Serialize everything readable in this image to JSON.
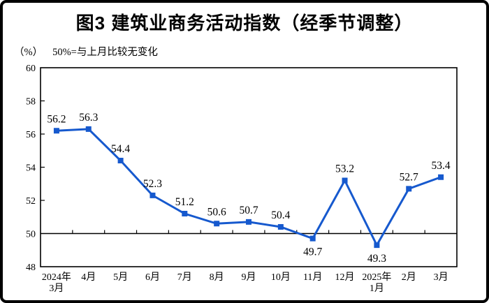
{
  "header": {
    "figure_label": "图3",
    "subtitle_unit": "（%）",
    "subtitle_note": "50%=与上月比较无变化"
  },
  "chart_data": {
    "type": "line",
    "title": "图3 建筑业商务活动指数（经季节调整）",
    "unit_label": "（%）",
    "note": "50%=与上月比较无变化",
    "categories": [
      "2024年\n3月",
      "4月",
      "5月",
      "6月",
      "7月",
      "8月",
      "9月",
      "10月",
      "11月",
      "12月",
      "2025年\n1月",
      "2月",
      "3月"
    ],
    "values": [
      56.2,
      56.3,
      54.4,
      52.3,
      51.2,
      50.6,
      50.7,
      50.4,
      49.7,
      53.2,
      49.3,
      52.7,
      53.4
    ],
    "yticks": [
      60,
      58,
      56,
      54,
      52,
      50,
      48
    ],
    "ylim": [
      48,
      60
    ],
    "reference_line": 50,
    "line_color": "#1659CE",
    "marker": "square",
    "axis_color": "#000000",
    "grid": false,
    "legend": "none",
    "xlabel": "",
    "ylabel": ""
  }
}
